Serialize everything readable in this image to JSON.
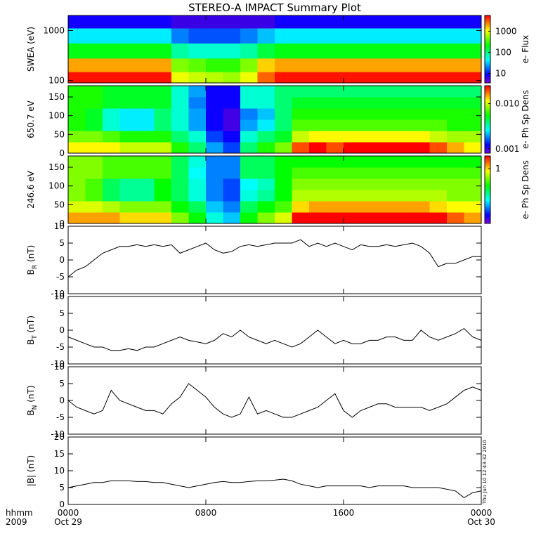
{
  "chart_data": [
    {
      "type": "heatmap",
      "title": "STEREO-A IMPACT Summary Plot",
      "ylabel": "SWEA (eV)",
      "ylog": true,
      "xlim": [
        0,
        24
      ],
      "ylim": [
        90,
        2000
      ],
      "yticks": [
        100,
        1000
      ],
      "xbins": [
        0,
        1,
        2,
        3,
        4,
        5,
        6,
        7,
        8,
        9,
        10,
        11,
        12,
        13,
        14,
        15,
        16,
        17,
        18,
        19,
        20,
        21,
        22,
        23,
        24
      ],
      "ybins": [
        90,
        150,
        280,
        560,
        1120,
        2000
      ],
      "z": [
        [
          5000,
          5000,
          5000,
          5000,
          5000,
          5000,
          1000,
          800,
          700,
          600,
          1000,
          3000,
          5000,
          5000,
          5000,
          5000,
          5000,
          5000,
          5000,
          5000,
          5000,
          5000,
          5000,
          5000
        ],
        [
          2000,
          2000,
          2000,
          2000,
          2000,
          2000,
          500,
          400,
          300,
          300,
          500,
          1500,
          2000,
          2000,
          2000,
          2000,
          2000,
          2000,
          2000,
          2000,
          2000,
          2000,
          2000,
          2000
        ],
        [
          200,
          200,
          200,
          200,
          200,
          200,
          80,
          60,
          60,
          60,
          80,
          150,
          200,
          200,
          200,
          200,
          200,
          200,
          200,
          200,
          200,
          200,
          200,
          200
        ],
        [
          40,
          40,
          40,
          40,
          40,
          40,
          20,
          15,
          15,
          15,
          20,
          30,
          40,
          40,
          40,
          40,
          40,
          40,
          40,
          40,
          40,
          40,
          40,
          40
        ],
        [
          8,
          8,
          8,
          8,
          8,
          8,
          6,
          6,
          6,
          6,
          6,
          6,
          8,
          8,
          8,
          8,
          8,
          8,
          8,
          8,
          8,
          8,
          8,
          8
        ]
      ],
      "clim": [
        3.5,
        5600
      ],
      "cticks": [
        10,
        100,
        1000
      ],
      "clabel": "e- Flux"
    },
    {
      "type": "heatmap",
      "ylabel": "650.7 eV",
      "ylog": false,
      "xlim": [
        0,
        24
      ],
      "ylim": [
        0,
        180
      ],
      "yticks": [
        0,
        50,
        100,
        150
      ],
      "xbins": [
        0,
        1,
        2,
        3,
        4,
        5,
        6,
        7,
        8,
        9,
        10,
        11,
        12,
        13,
        14,
        15,
        16,
        17,
        18,
        19,
        20,
        21,
        22,
        23,
        24
      ],
      "ybins": [
        0,
        30,
        60,
        90,
        120,
        150,
        180
      ],
      "z": [
        [
          0.012,
          0.012,
          0.012,
          0.01,
          0.01,
          0.01,
          0.006,
          0.004,
          0.002,
          0.0015,
          0.004,
          0.006,
          0.008,
          0.02,
          0.025,
          0.02,
          0.025,
          0.025,
          0.025,
          0.025,
          0.025,
          0.02,
          0.015,
          0.012
        ],
        [
          0.008,
          0.008,
          0.007,
          0.006,
          0.006,
          0.006,
          0.004,
          0.003,
          0.0015,
          0.0012,
          0.003,
          0.004,
          0.005,
          0.01,
          0.012,
          0.012,
          0.012,
          0.012,
          0.012,
          0.012,
          0.012,
          0.01,
          0.009,
          0.009
        ],
        [
          0.006,
          0.005,
          0.003,
          0.0025,
          0.0025,
          0.004,
          0.003,
          0.002,
          0.0012,
          0.001,
          0.002,
          0.0025,
          0.004,
          0.007,
          0.007,
          0.007,
          0.007,
          0.007,
          0.007,
          0.007,
          0.007,
          0.007,
          0.006,
          0.006
        ],
        [
          0.006,
          0.005,
          0.003,
          0.0025,
          0.0025,
          0.004,
          0.003,
          0.002,
          0.0012,
          0.001,
          0.0018,
          0.0022,
          0.004,
          0.006,
          0.006,
          0.006,
          0.006,
          0.006,
          0.006,
          0.006,
          0.006,
          0.006,
          0.006,
          0.006
        ],
        [
          0.006,
          0.006,
          0.005,
          0.005,
          0.005,
          0.005,
          0.003,
          0.0018,
          0.0012,
          0.0012,
          0.003,
          0.003,
          0.004,
          0.005,
          0.005,
          0.005,
          0.005,
          0.005,
          0.005,
          0.005,
          0.005,
          0.005,
          0.005,
          0.005
        ],
        [
          0.006,
          0.006,
          0.005,
          0.005,
          0.005,
          0.005,
          0.003,
          0.002,
          0.0012,
          0.0012,
          0.003,
          0.003,
          0.004,
          0.004,
          0.004,
          0.004,
          0.004,
          0.004,
          0.004,
          0.004,
          0.004,
          0.004,
          0.004,
          0.004
        ]
      ],
      "clim": [
        0.0008,
        0.025
      ],
      "cticks": [
        0.001,
        {
          "value": 0.01,
          "label": "0.010"
        }
      ],
      "clabel": "e- Ph Sp Dens"
    },
    {
      "type": "heatmap",
      "ylabel": "246.6 eV",
      "ylog": false,
      "xlim": [
        0,
        24
      ],
      "ylim": [
        0,
        180
      ],
      "yticks": [
        0,
        50,
        100,
        150
      ],
      "xbins": [
        0,
        1,
        2,
        3,
        4,
        5,
        6,
        7,
        8,
        9,
        10,
        11,
        12,
        13,
        14,
        15,
        16,
        17,
        18,
        19,
        20,
        21,
        22,
        23,
        24
      ],
      "ybins": [
        0,
        30,
        60,
        90,
        120,
        150,
        180
      ],
      "z": [
        [
          1.2,
          1.2,
          1.2,
          1,
          1,
          1,
          0.6,
          0.4,
          0.2,
          0.15,
          0.4,
          0.6,
          0.8,
          2,
          2.5,
          2,
          2.5,
          2.5,
          2.5,
          2.5,
          2.5,
          2,
          1.5,
          1.2
        ],
        [
          0.8,
          0.8,
          0.7,
          0.6,
          0.6,
          0.6,
          0.4,
          0.3,
          0.15,
          0.12,
          0.3,
          0.4,
          0.5,
          1,
          1.2,
          1.2,
          1.2,
          1.2,
          1.2,
          1.2,
          1.2,
          1,
          0.9,
          0.9
        ],
        [
          0.6,
          0.5,
          0.3,
          0.25,
          0.25,
          0.4,
          0.3,
          0.2,
          0.12,
          0.1,
          0.2,
          0.25,
          0.4,
          0.7,
          0.7,
          0.7,
          0.7,
          0.7,
          0.7,
          0.7,
          0.7,
          0.7,
          0.6,
          0.6
        ],
        [
          0.6,
          0.5,
          0.3,
          0.25,
          0.25,
          0.4,
          0.3,
          0.2,
          0.12,
          0.1,
          0.18,
          0.22,
          0.4,
          0.6,
          0.6,
          0.6,
          0.6,
          0.6,
          0.6,
          0.6,
          0.6,
          0.6,
          0.6,
          0.6
        ],
        [
          0.6,
          0.6,
          0.5,
          0.5,
          0.5,
          0.5,
          0.3,
          0.18,
          0.12,
          0.12,
          0.3,
          0.3,
          0.4,
          0.5,
          0.5,
          0.5,
          0.5,
          0.5,
          0.5,
          0.5,
          0.5,
          0.5,
          0.5,
          0.5
        ],
        [
          0.6,
          0.6,
          0.5,
          0.5,
          0.5,
          0.5,
          0.3,
          0.2,
          0.12,
          0.12,
          0.3,
          0.3,
          0.4,
          0.4,
          0.4,
          0.4,
          0.4,
          0.4,
          0.4,
          0.4,
          0.4,
          0.4,
          0.4,
          0.4
        ]
      ],
      "clim": [
        0.05,
        2
      ],
      "cticks": [
        1
      ],
      "clabel": "e- Ph Sp Dens"
    },
    {
      "type": "line",
      "ylabel": {
        "main": "B",
        "sub": "R",
        "unit": " (nT)"
      },
      "color": "#000000",
      "xlim": [
        0,
        24
      ],
      "ylim": [
        -10,
        10
      ],
      "yticks": [
        -10,
        -5,
        0,
        5,
        10
      ],
      "x": [
        0,
        0.5,
        1,
        1.5,
        2,
        2.5,
        3,
        3.5,
        4,
        4.5,
        5,
        5.5,
        6,
        6.5,
        7,
        7.5,
        8,
        8.5,
        9,
        9.5,
        10,
        10.5,
        11,
        11.5,
        12,
        12.5,
        13,
        13.5,
        14,
        14.5,
        15,
        15.5,
        16,
        16.5,
        17,
        17.5,
        18,
        18.5,
        19,
        19.5,
        20,
        20.5,
        21,
        21.5,
        22,
        22.5,
        23,
        23.5,
        24
      ],
      "values": [
        -5,
        -3,
        -2,
        0,
        2,
        3,
        4,
        4,
        4.5,
        4,
        4.5,
        4,
        4.5,
        2,
        3,
        4,
        5,
        3,
        2,
        2.5,
        4,
        4.5,
        4,
        4.5,
        5,
        5,
        5,
        6,
        4,
        5,
        4,
        5,
        4,
        3,
        4.5,
        4,
        4,
        4.5,
        4,
        4.5,
        5,
        4,
        2,
        -2,
        -1,
        -1,
        0,
        1,
        1
      ]
    },
    {
      "type": "line",
      "ylabel": {
        "main": "B",
        "sub": "T",
        "unit": " (nT)"
      },
      "color": "#000000",
      "xlim": [
        0,
        24
      ],
      "ylim": [
        -10,
        10
      ],
      "yticks": [
        -10,
        -5,
        0,
        5,
        10
      ],
      "x": [
        0,
        0.5,
        1,
        1.5,
        2,
        2.5,
        3,
        3.5,
        4,
        4.5,
        5,
        5.5,
        6,
        6.5,
        7,
        7.5,
        8,
        8.5,
        9,
        9.5,
        10,
        10.5,
        11,
        11.5,
        12,
        12.5,
        13,
        13.5,
        14,
        14.5,
        15,
        15.5,
        16,
        16.5,
        17,
        17.5,
        18,
        18.5,
        19,
        19.5,
        20,
        20.5,
        21,
        21.5,
        22,
        22.5,
        23,
        23.5,
        24
      ],
      "values": [
        -2,
        -3,
        -4,
        -5,
        -5,
        -6,
        -6,
        -5.5,
        -6,
        -5,
        -5,
        -4,
        -3,
        -2,
        -3,
        -3.5,
        -4,
        -3,
        -1,
        -2,
        0,
        -2,
        -3,
        -4,
        -3,
        -4,
        -5,
        -4,
        -2,
        0,
        -2,
        -4,
        -3,
        -4,
        -4,
        -3,
        -3,
        -2,
        -2,
        -3,
        -3,
        0,
        -2,
        -3,
        -2,
        -1,
        0.5,
        -2,
        -3
      ]
    },
    {
      "type": "line",
      "ylabel": {
        "main": "B",
        "sub": "N",
        "unit": " (nT)"
      },
      "color": "#000000",
      "xlim": [
        0,
        24
      ],
      "ylim": [
        -10,
        10
      ],
      "yticks": [
        -10,
        -5,
        0,
        5,
        10
      ],
      "x": [
        0,
        0.5,
        1,
        1.5,
        2,
        2.5,
        3,
        3.5,
        4,
        4.5,
        5,
        5.5,
        6,
        6.5,
        7,
        7.5,
        8,
        8.5,
        9,
        9.5,
        10,
        10.5,
        11,
        11.5,
        12,
        12.5,
        13,
        13.5,
        14,
        14.5,
        15,
        15.5,
        16,
        16.5,
        17,
        17.5,
        18,
        18.5,
        19,
        19.5,
        20,
        20.5,
        21,
        21.5,
        22,
        22.5,
        23,
        23.5,
        24
      ],
      "values": [
        0,
        -2,
        -3,
        -4,
        -3,
        3,
        0,
        -1,
        -2,
        -3,
        -3,
        -4,
        -1,
        1,
        5,
        3,
        1,
        -2,
        -4,
        -5,
        -4,
        1,
        -4,
        -3,
        -4,
        -5,
        -5,
        -4,
        -3,
        -2,
        0,
        2,
        -3,
        -5,
        -3,
        -2,
        -1,
        -1,
        -2,
        -2,
        -2,
        -2,
        -3,
        -2,
        -1,
        1,
        3,
        4,
        3
      ]
    },
    {
      "type": "line",
      "ylabel": {
        "main": "|B|",
        "unit": " (nT)"
      },
      "color": "#000000",
      "xlim": [
        0,
        24
      ],
      "ylim": [
        0,
        20
      ],
      "yticks": [
        0,
        5,
        10,
        15,
        20
      ],
      "x": [
        0,
        0.5,
        1,
        1.5,
        2,
        2.5,
        3,
        3.5,
        4,
        4.5,
        5,
        5.5,
        6,
        6.5,
        7,
        7.5,
        8,
        8.5,
        9,
        9.5,
        10,
        10.5,
        11,
        11.5,
        12,
        12.5,
        13,
        13.5,
        14,
        14.5,
        15,
        15.5,
        16,
        16.5,
        17,
        17.5,
        18,
        18.5,
        19,
        19.5,
        20,
        20.5,
        21,
        21.5,
        22,
        22.5,
        23,
        23.5,
        24
      ],
      "values": [
        5,
        5.5,
        6,
        6.5,
        6.5,
        7,
        7,
        7,
        6.8,
        6.8,
        6.5,
        6.5,
        6,
        5.5,
        5,
        5.5,
        6,
        6.5,
        6.8,
        6.5,
        6.5,
        6.8,
        7,
        7,
        7.2,
        7.5,
        7,
        6,
        5.5,
        5,
        5.5,
        5.5,
        5.5,
        5.5,
        5.5,
        5,
        5.5,
        5.5,
        5.5,
        5.5,
        5,
        5,
        5,
        5,
        4.5,
        4,
        2,
        3.5,
        4
      ],
      "xticks": [
        {
          "value": 0,
          "label": "0000"
        },
        {
          "value": 8,
          "label": "0800"
        },
        {
          "value": 16,
          "label": "1600"
        },
        {
          "value": 24,
          "label": "0000"
        }
      ],
      "date_labels": [
        {
          "value": 0,
          "label": "Oct 29"
        },
        {
          "value": 24,
          "label": "Oct 30"
        }
      ],
      "xlabel": "hhmm",
      "year": "2009",
      "timestamp": "Thu Jun 10 12:43:32 2010"
    }
  ]
}
